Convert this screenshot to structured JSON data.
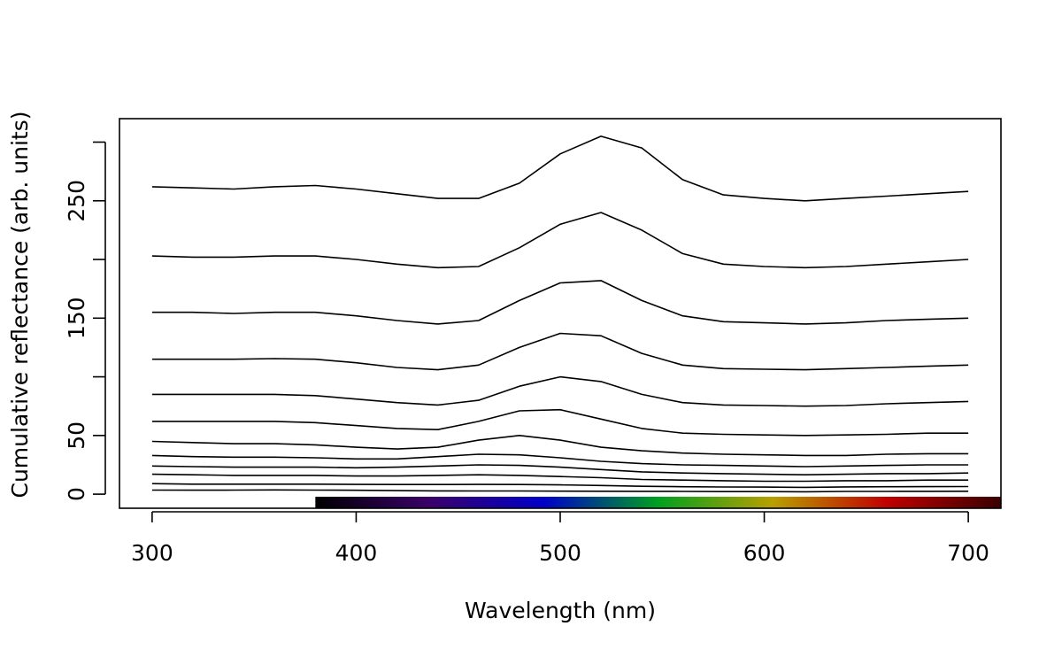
{
  "chart_data": {
    "type": "line",
    "title": "",
    "xlabel": "Wavelength (nm)",
    "ylabel": "Cumulative reflectance (arb. units)",
    "xlim": [
      284,
      716
    ],
    "ylim": [
      -12,
      320
    ],
    "x_ticks": [
      300,
      400,
      500,
      600,
      700
    ],
    "y_ticks": [
      0,
      50,
      100,
      150,
      200,
      250,
      300
    ],
    "y_tick_labels": [
      "0",
      "50",
      "",
      "150",
      "",
      "250",
      ""
    ],
    "grid": false,
    "legend": "none",
    "spectrum_bar": {
      "range": [
        380,
        716
      ],
      "colors": [
        "#000000",
        "#3a006a",
        "#0000c8",
        "#00a020",
        "#b8a000",
        "#c00000",
        "#3a0000"
      ]
    },
    "series_style": {
      "color": "#000000"
    },
    "series": [
      {
        "x": [
          300,
          320,
          340,
          360,
          380,
          400,
          420,
          440,
          460,
          480,
          500,
          520,
          540,
          560,
          580,
          600,
          620,
          640,
          660,
          680,
          700
        ],
        "y": [
          3.5,
          3.4,
          3.5,
          3.6,
          3.5,
          3.3,
          3,
          2.8,
          2.7,
          2.7,
          2.6,
          2.5,
          2.4,
          2.3,
          2.2,
          2.2,
          2.0,
          2.3,
          2.3,
          2.4,
          2.5
        ]
      },
      {
        "x": [
          300,
          320,
          340,
          360,
          380,
          400,
          420,
          440,
          460,
          480,
          500,
          520,
          540,
          560,
          580,
          600,
          620,
          640,
          660,
          680,
          700
        ],
        "y": [
          9,
          8.5,
          8.5,
          8.5,
          8.5,
          8.3,
          8.2,
          8.2,
          8.3,
          8.2,
          7.9,
          7.4,
          6.7,
          6.3,
          6.1,
          6.0,
          5.8,
          6.2,
          6.3,
          6.4,
          6.5
        ]
      },
      {
        "x": [
          300,
          320,
          340,
          360,
          380,
          400,
          420,
          440,
          460,
          480,
          500,
          520,
          540,
          560,
          580,
          600,
          620,
          640,
          660,
          680,
          700
        ],
        "y": [
          17,
          16.5,
          16,
          16,
          16,
          15.5,
          15.5,
          16,
          16.5,
          16,
          15,
          14,
          12.5,
          12,
          11.5,
          11,
          11,
          11.5,
          11.5,
          12,
          12
        ]
      },
      {
        "x": [
          300,
          320,
          340,
          360,
          380,
          400,
          420,
          440,
          460,
          480,
          500,
          520,
          540,
          560,
          580,
          600,
          620,
          640,
          660,
          680,
          700
        ],
        "y": [
          24,
          23.5,
          23,
          23,
          23,
          22.5,
          23,
          24,
          25,
          24.5,
          23,
          21,
          19,
          18,
          17.5,
          17,
          16.5,
          17,
          17.5,
          17.5,
          18
        ]
      },
      {
        "x": [
          300,
          320,
          340,
          360,
          380,
          400,
          420,
          440,
          460,
          480,
          500,
          520,
          540,
          560,
          580,
          600,
          620,
          640,
          660,
          680,
          700
        ],
        "y": [
          33,
          32,
          31.5,
          31.5,
          31,
          30,
          30,
          32,
          34,
          33.5,
          31,
          28,
          26,
          25,
          24.5,
          24,
          23.5,
          24,
          24.5,
          25,
          25
        ]
      },
      {
        "x": [
          300,
          320,
          340,
          360,
          380,
          400,
          420,
          440,
          460,
          480,
          500,
          520,
          540,
          560,
          580,
          600,
          620,
          640,
          660,
          680,
          700
        ],
        "y": [
          45,
          44,
          43,
          43,
          42,
          40,
          38.5,
          40,
          46,
          50,
          46,
          40,
          37,
          35,
          34,
          33.5,
          33,
          33,
          34,
          34.5,
          34.5
        ]
      },
      {
        "x": [
          300,
          320,
          340,
          360,
          380,
          400,
          420,
          440,
          460,
          480,
          500,
          520,
          540,
          560,
          580,
          600,
          620,
          640,
          660,
          680,
          700
        ],
        "y": [
          62,
          62,
          62,
          62,
          61,
          58.5,
          56,
          55,
          62,
          71,
          72,
          64,
          56,
          52,
          51,
          50.5,
          50,
          50.5,
          51,
          52,
          52
        ]
      },
      {
        "x": [
          300,
          320,
          340,
          360,
          380,
          400,
          420,
          440,
          460,
          480,
          500,
          520,
          540,
          560,
          580,
          600,
          620,
          640,
          660,
          680,
          700
        ],
        "y": [
          85,
          85,
          85,
          85,
          84,
          81,
          78,
          76,
          80,
          92,
          100,
          96,
          85,
          78,
          76,
          75.5,
          75,
          75.5,
          77,
          78,
          79
        ]
      },
      {
        "x": [
          300,
          320,
          340,
          360,
          380,
          400,
          420,
          440,
          460,
          480,
          500,
          520,
          540,
          560,
          580,
          600,
          620,
          640,
          660,
          680,
          700
        ],
        "y": [
          115,
          115,
          115,
          115.5,
          115,
          112,
          108,
          106,
          110,
          125,
          137,
          135,
          120,
          110,
          107,
          106.5,
          106,
          107,
          108,
          109,
          110
        ]
      },
      {
        "x": [
          300,
          320,
          340,
          360,
          380,
          400,
          420,
          440,
          460,
          480,
          500,
          520,
          540,
          560,
          580,
          600,
          620,
          640,
          660,
          680,
          700
        ],
        "y": [
          155,
          155,
          154,
          155,
          155,
          152,
          148,
          145,
          148,
          165,
          180,
          182,
          165,
          152,
          147,
          146,
          145,
          146,
          148,
          149,
          150
        ]
      },
      {
        "x": [
          300,
          320,
          340,
          360,
          380,
          400,
          420,
          440,
          460,
          480,
          500,
          520,
          540,
          560,
          580,
          600,
          620,
          640,
          660,
          680,
          700
        ],
        "y": [
          203,
          202,
          202,
          203,
          203,
          200,
          196,
          193,
          194,
          210,
          230,
          240,
          225,
          205,
          196,
          194,
          193,
          194,
          196,
          198,
          200
        ]
      },
      {
        "x": [
          300,
          320,
          340,
          360,
          380,
          400,
          420,
          440,
          460,
          480,
          500,
          520,
          540,
          560,
          580,
          600,
          620,
          640,
          660,
          680,
          700
        ],
        "y": [
          262,
          261,
          260,
          262,
          263,
          260,
          256,
          252,
          252,
          265,
          290,
          305,
          295,
          268,
          255,
          252,
          250,
          252,
          254,
          256,
          258
        ]
      }
    ]
  }
}
